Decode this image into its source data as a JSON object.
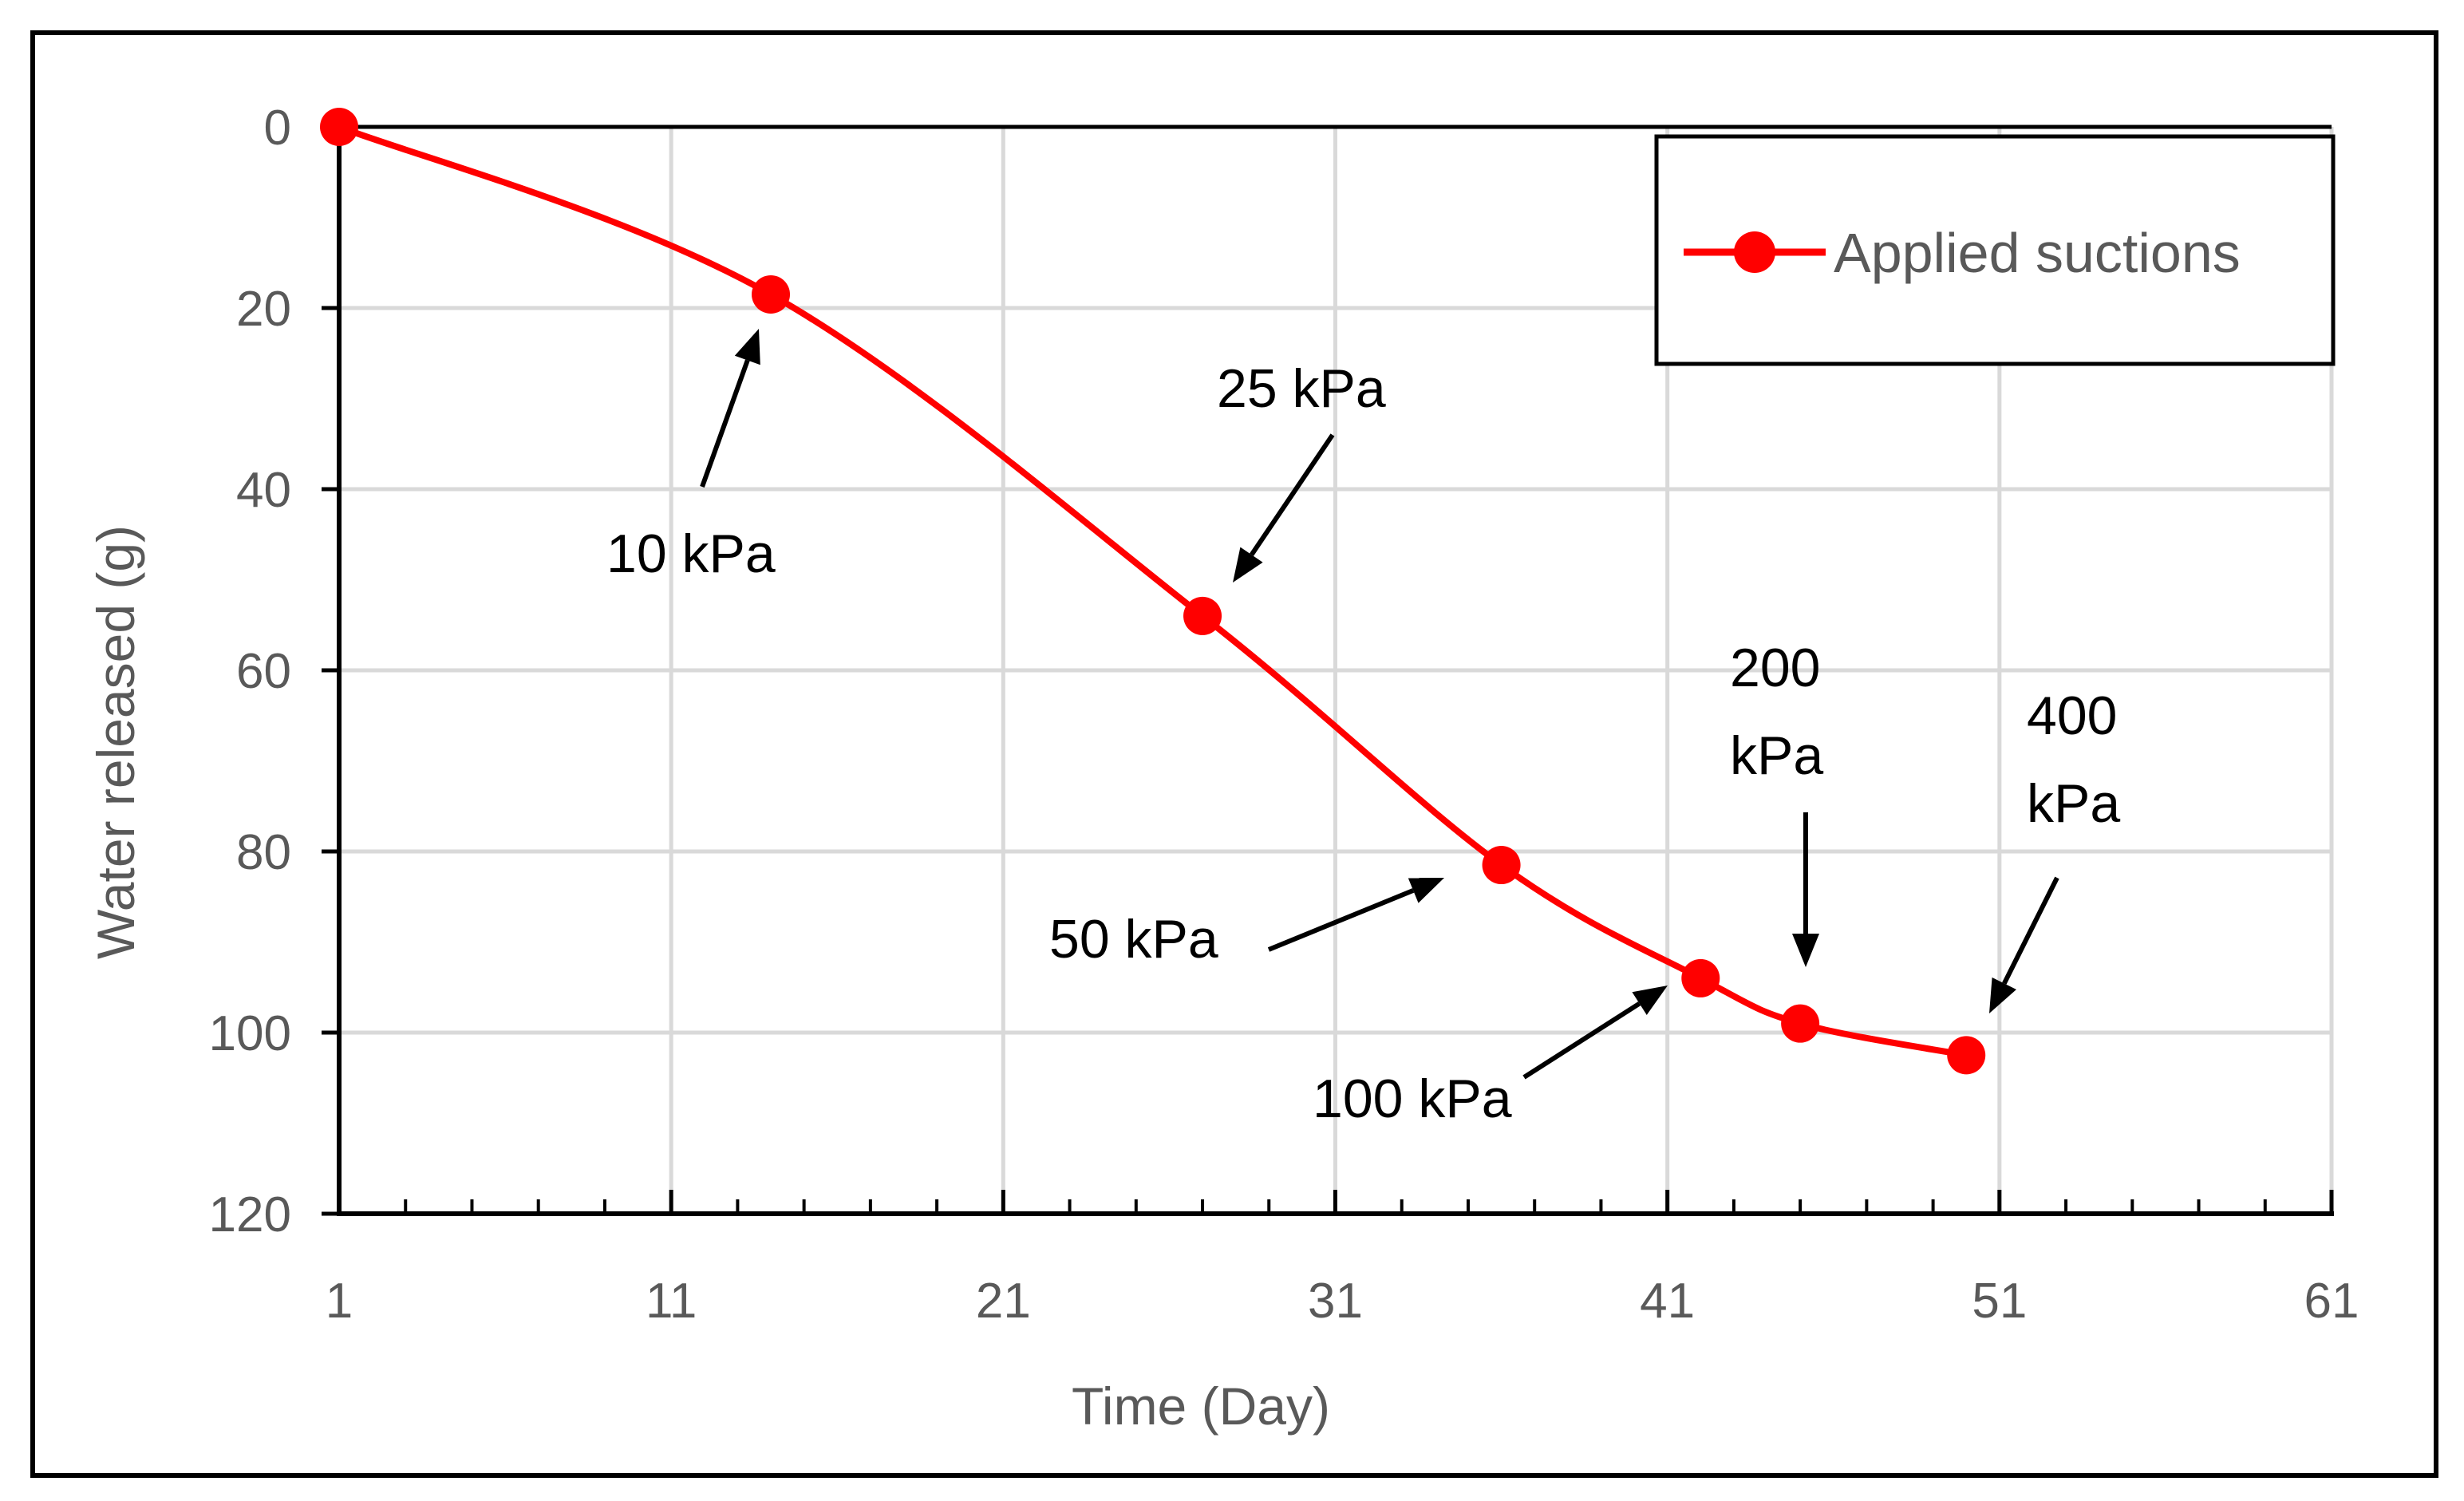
{
  "chart_data": {
    "type": "line",
    "title": "",
    "xlabel": "Time (Day)",
    "ylabel": "Water released (g)",
    "xlim": [
      1,
      61
    ],
    "ylim": [
      0,
      120
    ],
    "y_inverted": true,
    "x_ticks": [
      "1",
      "11",
      "21",
      "31",
      "41",
      "51",
      "61"
    ],
    "y_ticks": [
      "0",
      "20",
      "40",
      "60",
      "80",
      "100",
      "120"
    ],
    "grid": true,
    "legend_position": "top-right",
    "series": [
      {
        "name": "Applied suctions",
        "color": "#ff0000",
        "smooth": true,
        "x": [
          1,
          14,
          27,
          36,
          42,
          45,
          50
        ],
        "y": [
          0,
          18.5,
          54,
          81.5,
          94,
          99,
          102.5
        ]
      }
    ],
    "annotations": [
      {
        "lines": [
          "10 kPa"
        ],
        "target_x": 14,
        "target_y": 18.5
      },
      {
        "lines": [
          "25 kPa"
        ],
        "target_x": 27,
        "target_y": 54
      },
      {
        "lines": [
          "50 kPa"
        ],
        "target_x": 36,
        "target_y": 81.5
      },
      {
        "lines": [
          "100 kPa"
        ],
        "target_x": 42,
        "target_y": 94
      },
      {
        "lines": [
          "200",
          "kPa"
        ],
        "target_x": 45,
        "target_y": 99
      },
      {
        "lines": [
          "400",
          "kPa"
        ],
        "target_x": 50,
        "target_y": 102.5
      }
    ]
  }
}
